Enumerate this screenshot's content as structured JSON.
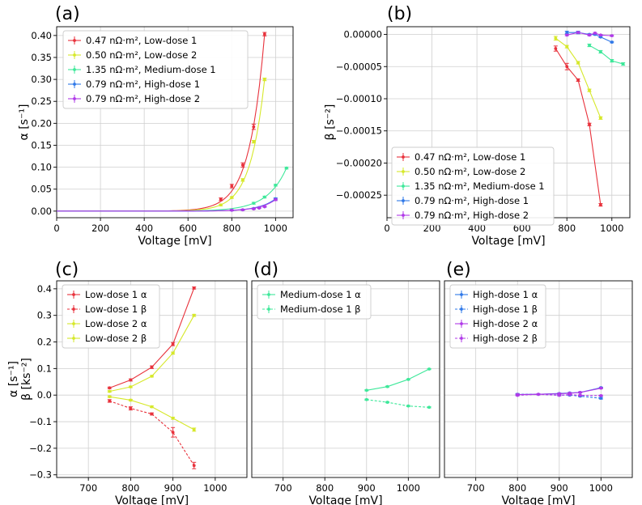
{
  "chart_data": [
    {
      "panel": "(a)",
      "type": "line",
      "xlabel": "Voltage [mV]",
      "ylabel": "α [s⁻¹]",
      "xlim": [
        0,
        1080
      ],
      "ylim": [
        -0.015,
        0.42
      ],
      "xticks": [
        "0",
        "200",
        "400",
        "600",
        "800",
        "1000"
      ],
      "yticks": [
        "0.00",
        "0.05",
        "0.10",
        "0.15",
        "0.20",
        "0.25",
        "0.30",
        "0.35",
        "0.40"
      ],
      "legend": "top-left",
      "series": [
        {
          "name": "0.47 nΩ·m², Low-dose 1",
          "color": "#e8323c",
          "x": [
            750,
            800,
            850,
            900,
            950
          ],
          "y": [
            0.027,
            0.057,
            0.105,
            0.192,
            0.403
          ],
          "err": [
            0.003,
            0.004,
            0.005,
            0.006,
            0.004
          ],
          "fit": {
            "a": 0.403,
            "k": 0.0145,
            "x0": 950
          }
        },
        {
          "name": "0.50 nΩ·m², Low-dose 2",
          "color": "#d6e82a",
          "x": [
            750,
            800,
            850,
            900,
            950
          ],
          "y": [
            0.014,
            0.031,
            0.071,
            0.158,
            0.3
          ],
          "err": [
            0.002,
            0.002,
            0.003,
            0.003,
            0.003
          ],
          "fit": {
            "a": 0.3,
            "k": 0.0152,
            "x0": 950
          }
        },
        {
          "name": "1.35 nΩ·m², Medium-dose 1",
          "color": "#3ee89a",
          "x": [
            900,
            950,
            1000,
            1050
          ],
          "y": [
            0.018,
            0.032,
            0.059,
            0.098
          ],
          "err": [
            0.002,
            0.002,
            0.002,
            0.002
          ],
          "fit": {
            "a": 0.098,
            "k": 0.0113,
            "x0": 1050
          }
        },
        {
          "name": "0.79 nΩ·m², High-dose 1",
          "color": "#2f78e8",
          "x": [
            800,
            850,
            900,
            925,
            950,
            1000
          ],
          "y": [
            0.002,
            0.003,
            0.006,
            0.008,
            0.01,
            0.028
          ],
          "err": [
            0.001,
            0.001,
            0.001,
            0.001,
            0.001,
            0.002
          ],
          "fit": {
            "a": 0.028,
            "k": 0.0135,
            "x0": 1000
          }
        },
        {
          "name": "0.79 nΩ·m², High-dose 2",
          "color": "#b03ae8",
          "x": [
            800,
            850,
            900,
            925,
            950,
            1000
          ],
          "y": [
            0.002,
            0.003,
            0.005,
            0.007,
            0.01,
            0.026
          ],
          "err": [
            0.001,
            0.001,
            0.001,
            0.001,
            0.001,
            0.002
          ],
          "fit": {
            "a": 0.026,
            "k": 0.0135,
            "x0": 1000
          }
        }
      ]
    },
    {
      "panel": "(b)",
      "type": "line",
      "xlabel": "Voltage [mV]",
      "ylabel": "β [s⁻²]",
      "xlim": [
        0,
        1080
      ],
      "ylim": [
        -0.000285,
        1.2e-05
      ],
      "xticks": [
        "0",
        "200",
        "400",
        "600",
        "800",
        "1000"
      ],
      "yticks": [
        "0.00000",
        "−0.00005",
        "−0.00010",
        "−0.00015",
        "−0.00020",
        "−0.00025"
      ],
      "legend": "bottom-center",
      "series": [
        {
          "name": "0.47 nΩ·m², Low-dose 1",
          "color": "#e8323c",
          "x": [
            750,
            800,
            850,
            900,
            950
          ],
          "y": [
            -2.2e-05,
            -5e-05,
            -7.1e-05,
            -0.00014,
            -0.000265
          ],
          "err": [
            4e-06,
            5e-06,
            2e-06,
            2e-06,
            2e-06
          ]
        },
        {
          "name": "0.50 nΩ·m², Low-dose 2",
          "color": "#d6e82a",
          "x": [
            750,
            800,
            850,
            900,
            950
          ],
          "y": [
            -6e-06,
            -1.9e-05,
            -4.4e-05,
            -8.7e-05,
            -0.00013
          ],
          "err": [
            3e-06,
            2e-06,
            2e-06,
            2e-06,
            2e-06
          ]
        },
        {
          "name": "1.35 nΩ·m², Medium-dose 1",
          "color": "#3ee89a",
          "x": [
            900,
            950,
            1000,
            1050
          ],
          "y": [
            -1.7e-05,
            -2.7e-05,
            -4.1e-05,
            -4.6e-05
          ],
          "err": [
            2e-06,
            2e-06,
            2e-06,
            2e-06
          ]
        },
        {
          "name": "0.79 nΩ·m², High-dose 1",
          "color": "#2f78e8",
          "x": [
            800,
            850,
            900,
            925,
            950,
            1000
          ],
          "y": [
            3e-06,
            3e-06,
            0.0,
            0.0,
            -4e-06,
            -1.2e-05
          ],
          "err": [
            2e-06,
            2e-06,
            1e-06,
            1e-06,
            1e-06,
            1e-06
          ]
        },
        {
          "name": "0.79 nΩ·m², High-dose 2",
          "color": "#b03ae8",
          "x": [
            800,
            850,
            900,
            925,
            950,
            1000
          ],
          "y": [
            -1e-06,
            3e-06,
            -1e-06,
            2e-06,
            -1e-06,
            -2e-06
          ],
          "err": [
            1e-06,
            1e-06,
            1e-06,
            1e-06,
            1e-06,
            1e-06
          ]
        }
      ]
    },
    {
      "panel": "(c)",
      "type": "line",
      "xlabel": "Voltage [mV]",
      "ylabel1": "α [s⁻¹]",
      "ylabel2": "β [ks⁻²]",
      "xlim": [
        625,
        1075
      ],
      "ylim": [
        -0.31,
        0.43
      ],
      "xticks": [
        "700",
        "800",
        "900",
        "1000"
      ],
      "yticks": [
        "−0.3",
        "−0.2",
        "−0.1",
        "0.0",
        "0.1",
        "0.2",
        "0.3",
        "0.4"
      ],
      "legend": "top-left",
      "series": [
        {
          "name": "Low-dose 1 α",
          "color": "#e8323c",
          "dash": false,
          "x": [
            750,
            800,
            850,
            900,
            950
          ],
          "y": [
            0.027,
            0.057,
            0.105,
            0.192,
            0.403
          ],
          "err": [
            0.003,
            0.004,
            0.005,
            0.006,
            0.004
          ]
        },
        {
          "name": "Low-dose 1 β",
          "color": "#e8323c",
          "dash": true,
          "x": [
            750,
            800,
            850,
            900,
            950
          ],
          "y": [
            -0.022,
            -0.05,
            -0.071,
            -0.14,
            -0.265
          ],
          "err": [
            0.005,
            0.006,
            0.004,
            0.018,
            0.012
          ]
        },
        {
          "name": "Low-dose 2 α",
          "color": "#d6e82a",
          "dash": false,
          "x": [
            750,
            800,
            850,
            900,
            950
          ],
          "y": [
            0.014,
            0.031,
            0.071,
            0.158,
            0.3
          ],
          "err": [
            0.003,
            0.003,
            0.003,
            0.004,
            0.004
          ]
        },
        {
          "name": "Low-dose 2 β",
          "color": "#d6e82a",
          "dash": false,
          "x": [
            750,
            800,
            850,
            900,
            950
          ],
          "y": [
            -0.006,
            -0.019,
            -0.044,
            -0.087,
            -0.13
          ],
          "err": [
            0.003,
            0.003,
            0.003,
            0.004,
            0.006
          ]
        }
      ]
    },
    {
      "panel": "(d)",
      "type": "line",
      "xlabel": "Voltage [mV]",
      "xlim": [
        625,
        1075
      ],
      "ylim": [
        -0.31,
        0.43
      ],
      "xticks": [
        "700",
        "800",
        "900",
        "1000"
      ],
      "legend": "top-left",
      "series": [
        {
          "name": "Medium-dose 1 α",
          "color": "#3ee89a",
          "dash": false,
          "x": [
            900,
            950,
            1000,
            1050
          ],
          "y": [
            0.018,
            0.032,
            0.059,
            0.098
          ],
          "err": [
            0.002,
            0.002,
            0.002,
            0.002
          ]
        },
        {
          "name": "Medium-dose 1 β",
          "color": "#3ee89a",
          "dash": true,
          "x": [
            900,
            950,
            1000,
            1050
          ],
          "y": [
            -0.017,
            -0.027,
            -0.041,
            -0.046
          ],
          "err": [
            0.002,
            0.002,
            0.002,
            0.002
          ]
        }
      ]
    },
    {
      "panel": "(e)",
      "type": "line",
      "xlabel": "Voltage [mV]",
      "xlim": [
        625,
        1075
      ],
      "ylim": [
        -0.31,
        0.43
      ],
      "xticks": [
        "700",
        "800",
        "900",
        "1000"
      ],
      "legend": "top-left",
      "series": [
        {
          "name": "High-dose 1 α",
          "color": "#2f78e8",
          "dash": false,
          "x": [
            800,
            850,
            900,
            925,
            950,
            1000
          ],
          "y": [
            0.002,
            0.003,
            0.006,
            0.008,
            0.01,
            0.028
          ],
          "err": [
            0.002,
            0.002,
            0.002,
            0.002,
            0.002,
            0.002
          ]
        },
        {
          "name": "High-dose 1 β",
          "color": "#2f78e8",
          "dash": true,
          "x": [
            800,
            850,
            900,
            925,
            950,
            1000
          ],
          "y": [
            0.003,
            0.003,
            0.0,
            0.0,
            -0.004,
            -0.012
          ],
          "err": [
            0.003,
            0.002,
            0.002,
            0.002,
            0.002,
            0.003
          ]
        },
        {
          "name": "High-dose 2 α",
          "color": "#b03ae8",
          "dash": false,
          "x": [
            800,
            850,
            900,
            925,
            950,
            1000
          ],
          "y": [
            0.002,
            0.003,
            0.005,
            0.007,
            0.01,
            0.026
          ],
          "err": [
            0.002,
            0.002,
            0.002,
            0.002,
            0.002,
            0.002
          ]
        },
        {
          "name": "High-dose 2 β",
          "color": "#b03ae8",
          "dash": true,
          "x": [
            800,
            850,
            900,
            925,
            950,
            1000
          ],
          "y": [
            -0.001,
            0.003,
            -0.001,
            0.002,
            -0.001,
            -0.002
          ],
          "err": [
            0.002,
            0.002,
            0.002,
            0.002,
            0.002,
            0.002
          ]
        }
      ]
    }
  ]
}
